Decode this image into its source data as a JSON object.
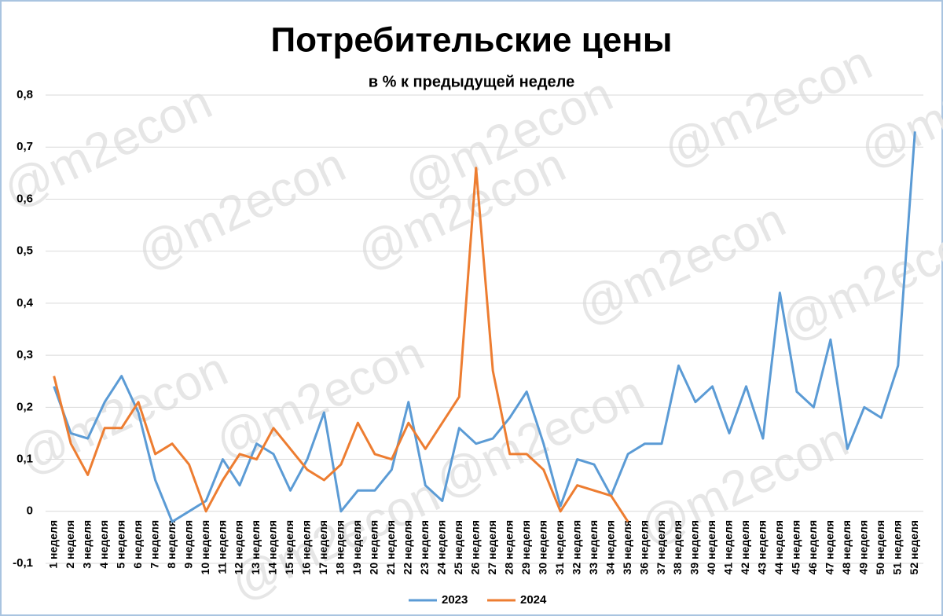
{
  "chart_data": {
    "type": "line",
    "title": "Потребительские цены",
    "subtitle": "в % к предыдущей неделе",
    "watermark": "@m2econ",
    "categories": [
      "1 неделя",
      "2 неделя",
      "3 неделя",
      "4 неделя",
      "5 неделя",
      "6 неделя",
      "7 неделя",
      "8 неделя",
      "9 неделя",
      "10 неделя",
      "11 неделя",
      "12 неделя",
      "13 неделя",
      "14 неделя",
      "15 неделя",
      "16 неделя",
      "17 неделя",
      "18 неделя",
      "19 неделя",
      "20 неделя",
      "21 неделя",
      "22 неделя",
      "23 неделя",
      "24 неделя",
      "25 неделя",
      "26 неделя",
      "27 неделя",
      "28 неделя",
      "29 неделя",
      "30 неделя",
      "31 неделя",
      "32 неделя",
      "33 неделя",
      "34 неделя",
      "35 неделя",
      "36 неделя",
      "37 неделя",
      "38 неделя",
      "39 неделя",
      "40 неделя",
      "41 неделя",
      "42 неделя",
      "43 неделя",
      "44 неделя",
      "45 неделя",
      "46 неделя",
      "47 неделя",
      "48 неделя",
      "49 неделя",
      "50 неделя",
      "51 неделя",
      "52 неделя"
    ],
    "series": [
      {
        "name": "2023",
        "color": "#5b9bd5",
        "values": [
          0.24,
          0.15,
          0.14,
          0.21,
          0.26,
          0.19,
          0.06,
          -0.02,
          0.0,
          0.02,
          0.1,
          0.05,
          0.13,
          0.11,
          0.04,
          0.1,
          0.19,
          0.0,
          0.04,
          0.04,
          0.08,
          0.21,
          0.05,
          0.02,
          0.16,
          0.13,
          0.14,
          0.18,
          0.23,
          0.13,
          0.01,
          0.1,
          0.09,
          0.03,
          0.11,
          0.13,
          0.13,
          0.28,
          0.21,
          0.24,
          0.15,
          0.24,
          0.14,
          0.42,
          0.23,
          0.2,
          0.33,
          0.12,
          0.2,
          0.18,
          0.28,
          0.73
        ]
      },
      {
        "name": "2024",
        "color": "#ed7d31",
        "values": [
          0.26,
          0.13,
          0.07,
          0.16,
          0.16,
          0.21,
          0.11,
          0.13,
          0.09,
          0.0,
          0.06,
          0.11,
          0.1,
          0.16,
          0.12,
          0.08,
          0.06,
          0.09,
          0.17,
          0.11,
          0.1,
          0.17,
          0.12,
          0.17,
          0.22,
          0.66,
          0.27,
          0.11,
          0.11,
          0.08,
          0.0,
          0.05,
          0.04,
          0.03,
          -0.02,
          null,
          null,
          null,
          null,
          null,
          null,
          null,
          null,
          null,
          null,
          null,
          null,
          null,
          null,
          null,
          null,
          null
        ]
      }
    ],
    "ylim": [
      -0.1,
      0.8
    ],
    "yticks": [
      {
        "value": -0.1,
        "label": "-0,1"
      },
      0,
      {
        "value": 0.1,
        "label": "0,1"
      },
      {
        "value": 0.2,
        "label": "0,2"
      },
      {
        "value": 0.3,
        "label": "0,3"
      },
      {
        "value": 0.4,
        "label": "0,4"
      },
      {
        "value": 0.5,
        "label": "0,5"
      },
      {
        "value": 0.6,
        "label": "0,6"
      },
      {
        "value": 0.7,
        "label": "0,7"
      },
      {
        "value": 0.8,
        "label": "0,8"
      }
    ],
    "grid": true,
    "legend": "bottom"
  }
}
